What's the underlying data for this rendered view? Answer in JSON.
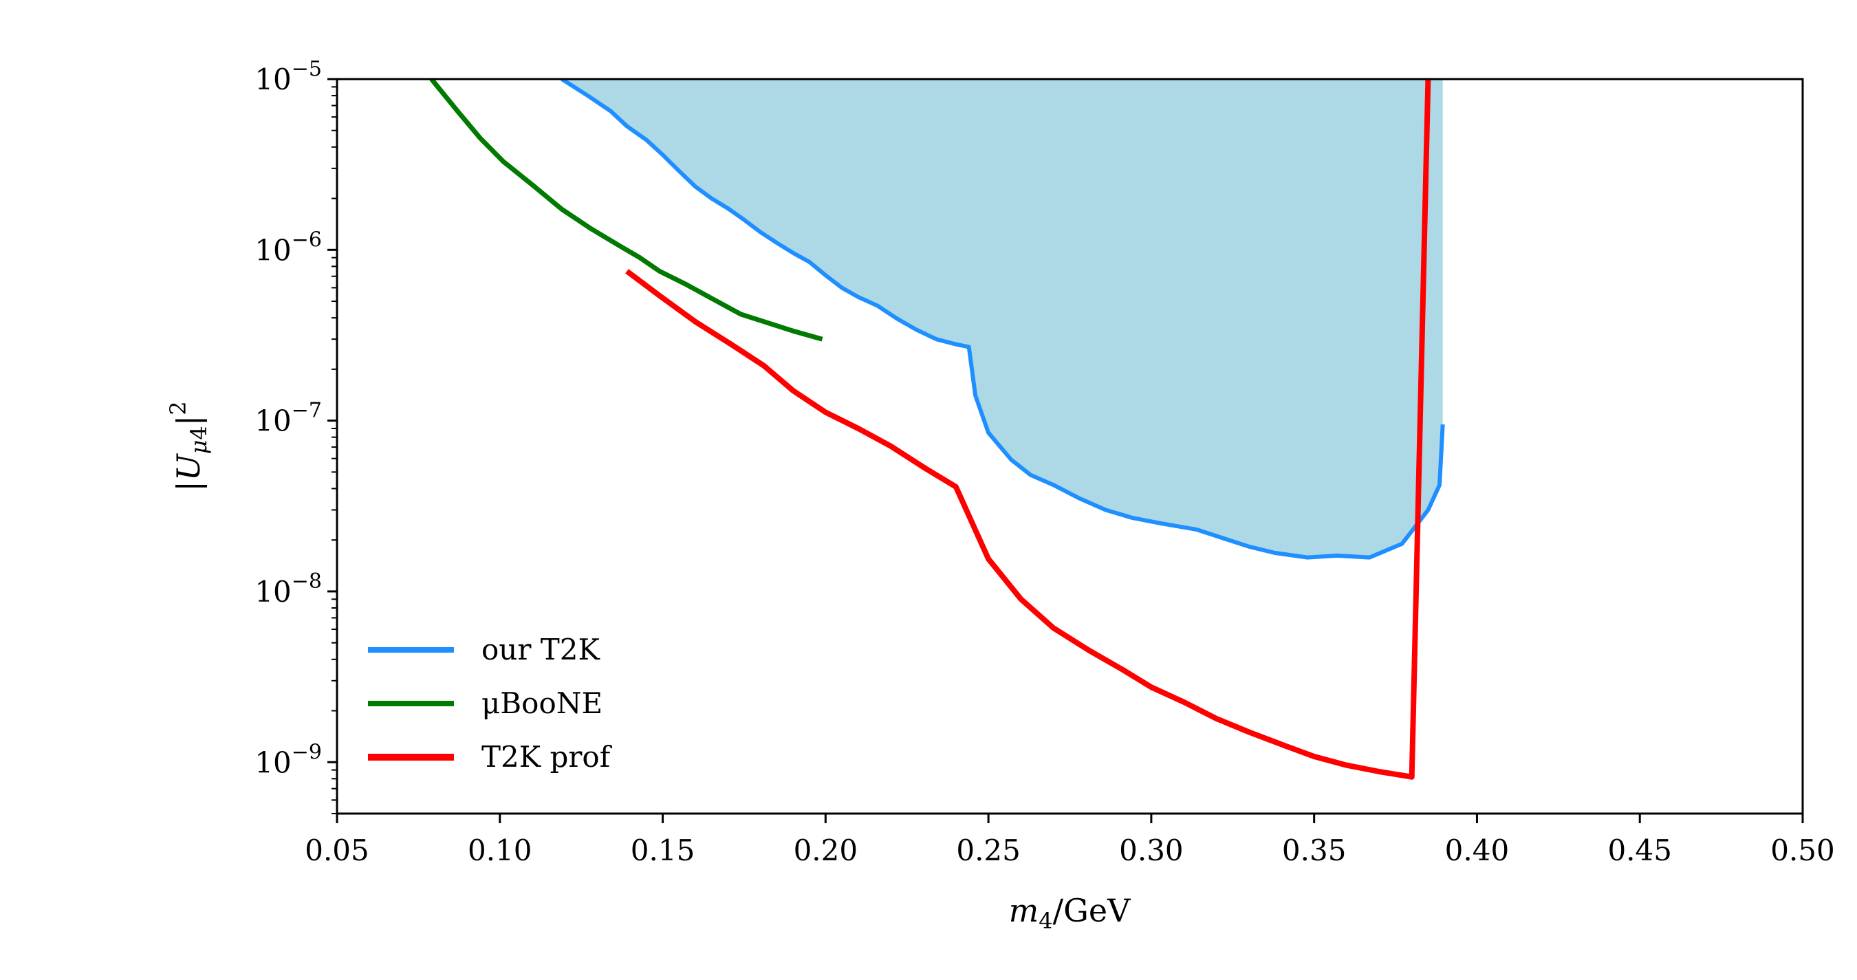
{
  "chart_data": {
    "type": "line",
    "title": "",
    "xlabel": "m_4/GeV",
    "ylabel": "|U_{μ4}|^2",
    "xlim": [
      0.05,
      0.5
    ],
    "ylim": [
      5e-10,
      1e-05
    ],
    "yscale": "log",
    "grid": false,
    "legend_position": "lower-left",
    "xticks": [
      "0.05",
      "0.10",
      "0.15",
      "0.20",
      "0.25",
      "0.30",
      "0.35",
      "0.40",
      "0.45",
      "0.50"
    ],
    "yticks": [
      {
        "value": 1e-05,
        "base": "10",
        "exp": "−5"
      },
      {
        "value": 1e-06,
        "base": "10",
        "exp": "−6"
      },
      {
        "value": 1e-07,
        "base": "10",
        "exp": "−7"
      },
      {
        "value": 1e-08,
        "base": "10",
        "exp": "−8"
      },
      {
        "value": 1e-09,
        "base": "10",
        "exp": "−9"
      }
    ],
    "series": [
      {
        "name": "our T2K",
        "color": "#1f8fff",
        "fill_color": "#add8e6",
        "filled": true,
        "x": [
          0.119,
          0.127,
          0.134,
          0.139,
          0.145,
          0.15,
          0.155,
          0.16,
          0.165,
          0.17,
          0.175,
          0.18,
          0.185,
          0.19,
          0.195,
          0.2,
          0.205,
          0.21,
          0.216,
          0.222,
          0.228,
          0.234,
          0.24,
          0.244,
          0.246,
          0.25,
          0.257,
          0.263,
          0.27,
          0.278,
          0.286,
          0.294,
          0.303,
          0.314,
          0.322,
          0.33,
          0.338,
          0.348,
          0.357,
          0.367,
          0.377,
          0.385,
          0.3885,
          0.3895
        ],
        "y": [
          1e-05,
          8e-06,
          6.5e-06,
          5.3e-06,
          4.4e-06,
          3.6e-06,
          2.9e-06,
          2.35e-06,
          2e-06,
          1.75e-06,
          1.5e-06,
          1.27e-06,
          1.1e-06,
          9.6e-07,
          8.5e-07,
          7.1e-07,
          6e-07,
          5.3e-07,
          4.7e-07,
          3.95e-07,
          3.4e-07,
          3e-07,
          2.8e-07,
          2.7e-07,
          1.4e-07,
          8.5e-08,
          5.9e-08,
          4.8e-08,
          4.2e-08,
          3.5e-08,
          3e-08,
          2.7e-08,
          2.5e-08,
          2.3e-08,
          2.05e-08,
          1.83e-08,
          1.68e-08,
          1.58e-08,
          1.62e-08,
          1.58e-08,
          1.9e-08,
          3e-08,
          4.2e-08,
          9.5e-08
        ]
      },
      {
        "name": "μBooNE",
        "color": "#007a00",
        "x": [
          0.079,
          0.087,
          0.094,
          0.101,
          0.11,
          0.119,
          0.128,
          0.137,
          0.143,
          0.149,
          0.157,
          0.165,
          0.174,
          0.182,
          0.19,
          0.199
        ],
        "y": [
          1e-05,
          6.5e-06,
          4.5e-06,
          3.3e-06,
          2.4e-06,
          1.73e-06,
          1.33e-06,
          1.05e-06,
          9e-07,
          7.5e-07,
          6.3e-07,
          5.2e-07,
          4.2e-07,
          3.75e-07,
          3.35e-07,
          3e-07
        ]
      },
      {
        "name": "T2K prof",
        "color": "#ff0000",
        "x": [
          0.139,
          0.149,
          0.16,
          0.171,
          0.181,
          0.19,
          0.2,
          0.21,
          0.22,
          0.231,
          0.24,
          0.25,
          0.26,
          0.27,
          0.281,
          0.291,
          0.3,
          0.31,
          0.32,
          0.33,
          0.341,
          0.35,
          0.36,
          0.37,
          0.38,
          0.385
        ],
        "y": [
          7.5e-07,
          5.4e-07,
          3.8e-07,
          2.8e-07,
          2.1e-07,
          1.5e-07,
          1.12e-07,
          9e-08,
          7.1e-08,
          5.2e-08,
          4.1e-08,
          1.55e-08,
          9e-09,
          6.1e-09,
          4.5e-09,
          3.5e-09,
          2.75e-09,
          2.25e-09,
          1.8e-09,
          1.5e-09,
          1.25e-09,
          1.08e-09,
          9.6e-10,
          8.8e-10,
          8.2e-10,
          1e-05
        ]
      }
    ]
  }
}
